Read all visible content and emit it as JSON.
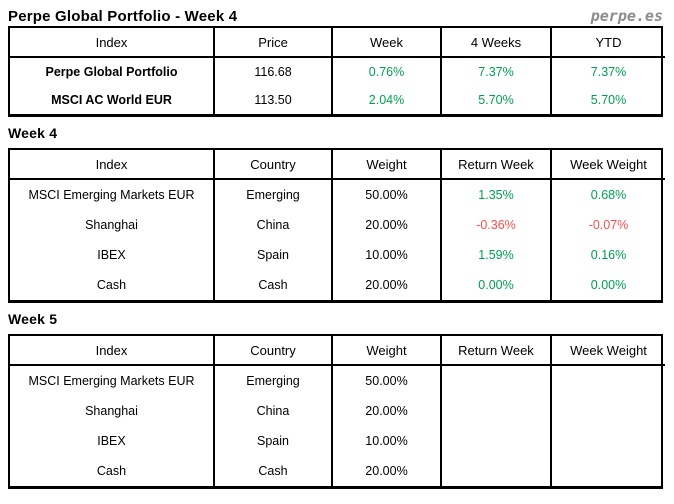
{
  "page": {
    "title": "Perpe Global Portfolio - Week 4",
    "logo": "perpe.es"
  },
  "colors": {
    "positive_green": "#00A050",
    "negative_red": "#FF4D4D",
    "logo_gray": "#8C8C8C",
    "border_black": "#000000"
  },
  "summary_table": {
    "headers": [
      "Index",
      "Price",
      "Week",
      "4 Weeks",
      "YTD"
    ],
    "rows": [
      {
        "index": "Perpe Global Portfolio",
        "price": "116.68",
        "week": "0.76%",
        "four_weeks": "7.37%",
        "ytd": "7.37%"
      },
      {
        "index": "MSCI AC World EUR",
        "price": "113.50",
        "week": "2.04%",
        "four_weeks": "5.70%",
        "ytd": "5.70%"
      }
    ]
  },
  "week4_section": {
    "heading": "Week 4",
    "table": {
      "headers": [
        "Index",
        "Country",
        "Weight",
        "Return Week",
        "Week Weight"
      ],
      "rows": [
        {
          "index": "MSCI Emerging Markets EUR",
          "country": "Emerging",
          "weight": "50.00%",
          "return_week": "1.35%",
          "week_weight": "0.68%"
        },
        {
          "index": "Shanghai",
          "country": "China",
          "weight": "20.00%",
          "return_week": "-0.36%",
          "week_weight": "-0.07%"
        },
        {
          "index": "IBEX",
          "country": "Spain",
          "weight": "10.00%",
          "return_week": "1.59%",
          "week_weight": "0.16%"
        },
        {
          "index": "Cash",
          "country": "Cash",
          "weight": "20.00%",
          "return_week": "0.00%",
          "week_weight": "0.00%"
        }
      ]
    }
  },
  "week5_section": {
    "heading": "Week 5",
    "table": {
      "headers": [
        "Index",
        "Country",
        "Weight",
        "Return Week",
        "Week Weight"
      ],
      "rows": [
        {
          "index": "MSCI Emerging Markets EUR",
          "country": "Emerging",
          "weight": "50.00%",
          "return_week": "",
          "week_weight": ""
        },
        {
          "index": "Shanghai",
          "country": "China",
          "weight": "20.00%",
          "return_week": "",
          "week_weight": ""
        },
        {
          "index": "IBEX",
          "country": "Spain",
          "weight": "10.00%",
          "return_week": "",
          "week_weight": ""
        },
        {
          "index": "Cash",
          "country": "Cash",
          "weight": "20.00%",
          "return_week": "",
          "week_weight": ""
        }
      ]
    }
  }
}
